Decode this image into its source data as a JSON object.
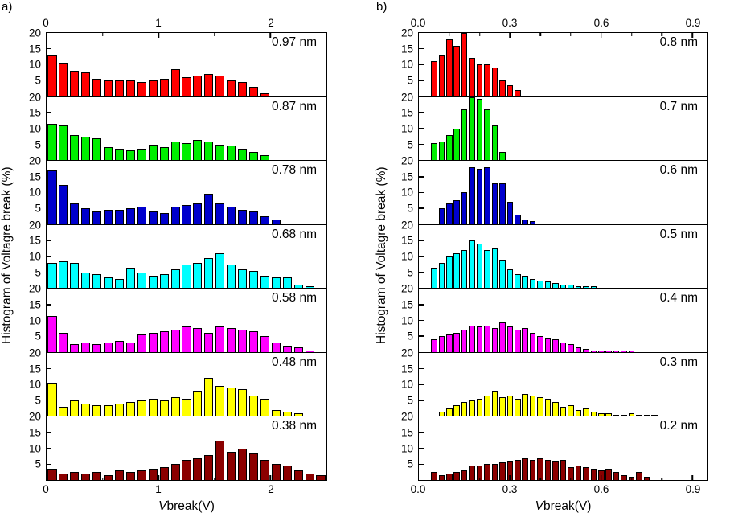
{
  "figure": {
    "panel_a_label": "a)",
    "panel_b_label": "b)",
    "ylabel": "Histogram of Voltagre break (%)",
    "xlabel_v": "V",
    "xlabel_rest": "break(V)"
  },
  "chart_data": [
    {
      "type": "bar",
      "column": "a",
      "title": "",
      "xlabel": "Vbreak(V)",
      "ylabel": "Histogram of Voltagre break (%)",
      "xlim": [
        0,
        2.5
      ],
      "ylim": [
        0,
        20
      ],
      "yticks": [
        5,
        10,
        15,
        20
      ],
      "xticks": [
        0,
        1,
        2
      ],
      "xtick_labels": [
        "0",
        "1",
        "2"
      ],
      "minor_xticks": [
        0.5,
        1.5
      ],
      "bin_width": 0.1,
      "panels": [
        {
          "label": "0.97 nm",
          "color": "#ff0000",
          "x_start": 0.05,
          "values": [
            13,
            10.5,
            8,
            7.5,
            5.5,
            5,
            5,
            5,
            4.5,
            5,
            5.5,
            8.5,
            6,
            6.5,
            7,
            6.5,
            5,
            4.5,
            3,
            1
          ]
        },
        {
          "label": "0.87 nm",
          "color": "#00ee00",
          "x_start": 0.05,
          "values": [
            11.5,
            11,
            8,
            7.5,
            7,
            4,
            3.5,
            3,
            3.5,
            5,
            4,
            6,
            5.5,
            6.5,
            6,
            5,
            4.5,
            3.5,
            2.5,
            1.5
          ]
        },
        {
          "label": "0.78 nm",
          "color": "#0000cd",
          "x_start": 0.05,
          "values": [
            17,
            12.5,
            6.5,
            5,
            4,
            4.5,
            4.5,
            5,
            5.5,
            4,
            3.5,
            5.5,
            6,
            6.5,
            9.5,
            6.5,
            5.5,
            4.5,
            4,
            2.5,
            1.5
          ]
        },
        {
          "label": "0.68 nm",
          "color": "#00ffff",
          "x_start": 0.05,
          "values": [
            8,
            8.5,
            8,
            5,
            4.5,
            3.5,
            3,
            6.5,
            5,
            4,
            4.5,
            6,
            7.5,
            8,
            9.5,
            11,
            7.5,
            6,
            5.5,
            4,
            3.5,
            3.5,
            1,
            0.5
          ]
        },
        {
          "label": "0.58 nm",
          "color": "#ff00ff",
          "x_start": 0.05,
          "values": [
            11.5,
            6,
            2.5,
            3,
            2.5,
            3,
            3.5,
            3,
            5.5,
            6,
            6.5,
            7,
            8,
            7.5,
            6,
            8,
            7.5,
            7,
            6.5,
            5,
            3,
            2,
            1.5,
            0.5
          ]
        },
        {
          "label": "0.48 nm",
          "color": "#ffff00",
          "x_start": 0.05,
          "values": [
            10.5,
            3,
            5,
            4,
            3.5,
            3.5,
            4,
            4.5,
            5,
            5.5,
            5,
            6,
            5.5,
            8,
            12,
            9.5,
            9,
            8.5,
            6.5,
            5.5,
            2,
            1.5,
            1
          ]
        },
        {
          "label": "0.38 nm",
          "color": "#8b0000",
          "x_start": 0.05,
          "values": [
            3.5,
            2,
            2.5,
            2,
            2.5,
            1.5,
            3,
            2.5,
            3,
            3.5,
            4,
            5,
            6.5,
            7,
            8,
            12.5,
            9,
            10,
            8.5,
            6.5,
            5,
            4.5,
            3,
            2,
            1.5
          ]
        }
      ]
    },
    {
      "type": "bar",
      "column": "b",
      "title": "",
      "xlabel": "Vbreak(V)",
      "ylabel": "Histogram of Voltagre break (%)",
      "xlim": [
        0,
        0.95
      ],
      "ylim": [
        0,
        20
      ],
      "yticks": [
        5,
        10,
        15,
        20
      ],
      "xticks": [
        0,
        0.3,
        0.6,
        0.9
      ],
      "xtick_labels": [
        "0.0",
        "0.3",
        "0.6",
        "0.9"
      ],
      "minor_xticks": [
        0.1,
        0.2,
        0.4,
        0.5,
        0.7,
        0.8
      ],
      "bin_width": 0.025,
      "panels": [
        {
          "label": "0.8 nm",
          "color": "#ff0000",
          "x_start": 0.05,
          "values": [
            11,
            13,
            18,
            16,
            20,
            12,
            10,
            10,
            9,
            5,
            3.5,
            2
          ]
        },
        {
          "label": "0.7 nm",
          "color": "#00ee00",
          "x_start": 0.05,
          "values": [
            5.5,
            6,
            8,
            10,
            16,
            20,
            19.5,
            16,
            11,
            2.5
          ]
        },
        {
          "label": "0.6 nm",
          "color": "#0000cd",
          "x_start": 0.075,
          "values": [
            5,
            6.5,
            7.5,
            10,
            18,
            17.5,
            18,
            13,
            13,
            7,
            3,
            1.5,
            1
          ]
        },
        {
          "label": "0.5 nm",
          "color": "#00ffff",
          "x_start": 0.05,
          "values": [
            6.5,
            8,
            10,
            11,
            12,
            15,
            14,
            12,
            12.5,
            9,
            6,
            4.5,
            4,
            3,
            2.5,
            2,
            1.5,
            1,
            1,
            0.5,
            0.5,
            0.5
          ]
        },
        {
          "label": "0.4 nm",
          "color": "#ff00ff",
          "x_start": 0.05,
          "values": [
            4,
            5,
            5.5,
            6,
            7,
            8.5,
            8,
            8.5,
            7.5,
            9.5,
            8,
            7,
            7.5,
            6,
            5,
            4.5,
            4,
            3,
            2.5,
            1.5,
            1,
            0.5,
            0.5,
            0.5,
            0.5,
            0.5,
            0.5
          ]
        },
        {
          "label": "0.3 nm",
          "color": "#ffff00",
          "x_start": 0.075,
          "values": [
            1.5,
            2.5,
            3.5,
            4.5,
            5,
            5.5,
            6.5,
            8,
            6,
            6.5,
            5.5,
            7,
            6.5,
            6,
            5.5,
            4.5,
            3,
            3.5,
            2,
            2.5,
            1.5,
            1,
            1,
            0.5,
            0.5,
            1,
            0.5,
            0.5,
            0.5
          ]
        },
        {
          "label": "0.2 nm",
          "color": "#8b0000",
          "x_start": 0.05,
          "values": [
            2.5,
            1.5,
            2,
            2.5,
            3,
            4.5,
            4.5,
            5,
            5,
            5.5,
            6,
            6.5,
            7,
            6.5,
            7,
            6.5,
            6,
            6.5,
            4,
            4.5,
            4,
            3.5,
            3,
            3.5,
            2.5,
            1.5,
            1,
            2.5,
            1
          ]
        }
      ]
    }
  ]
}
